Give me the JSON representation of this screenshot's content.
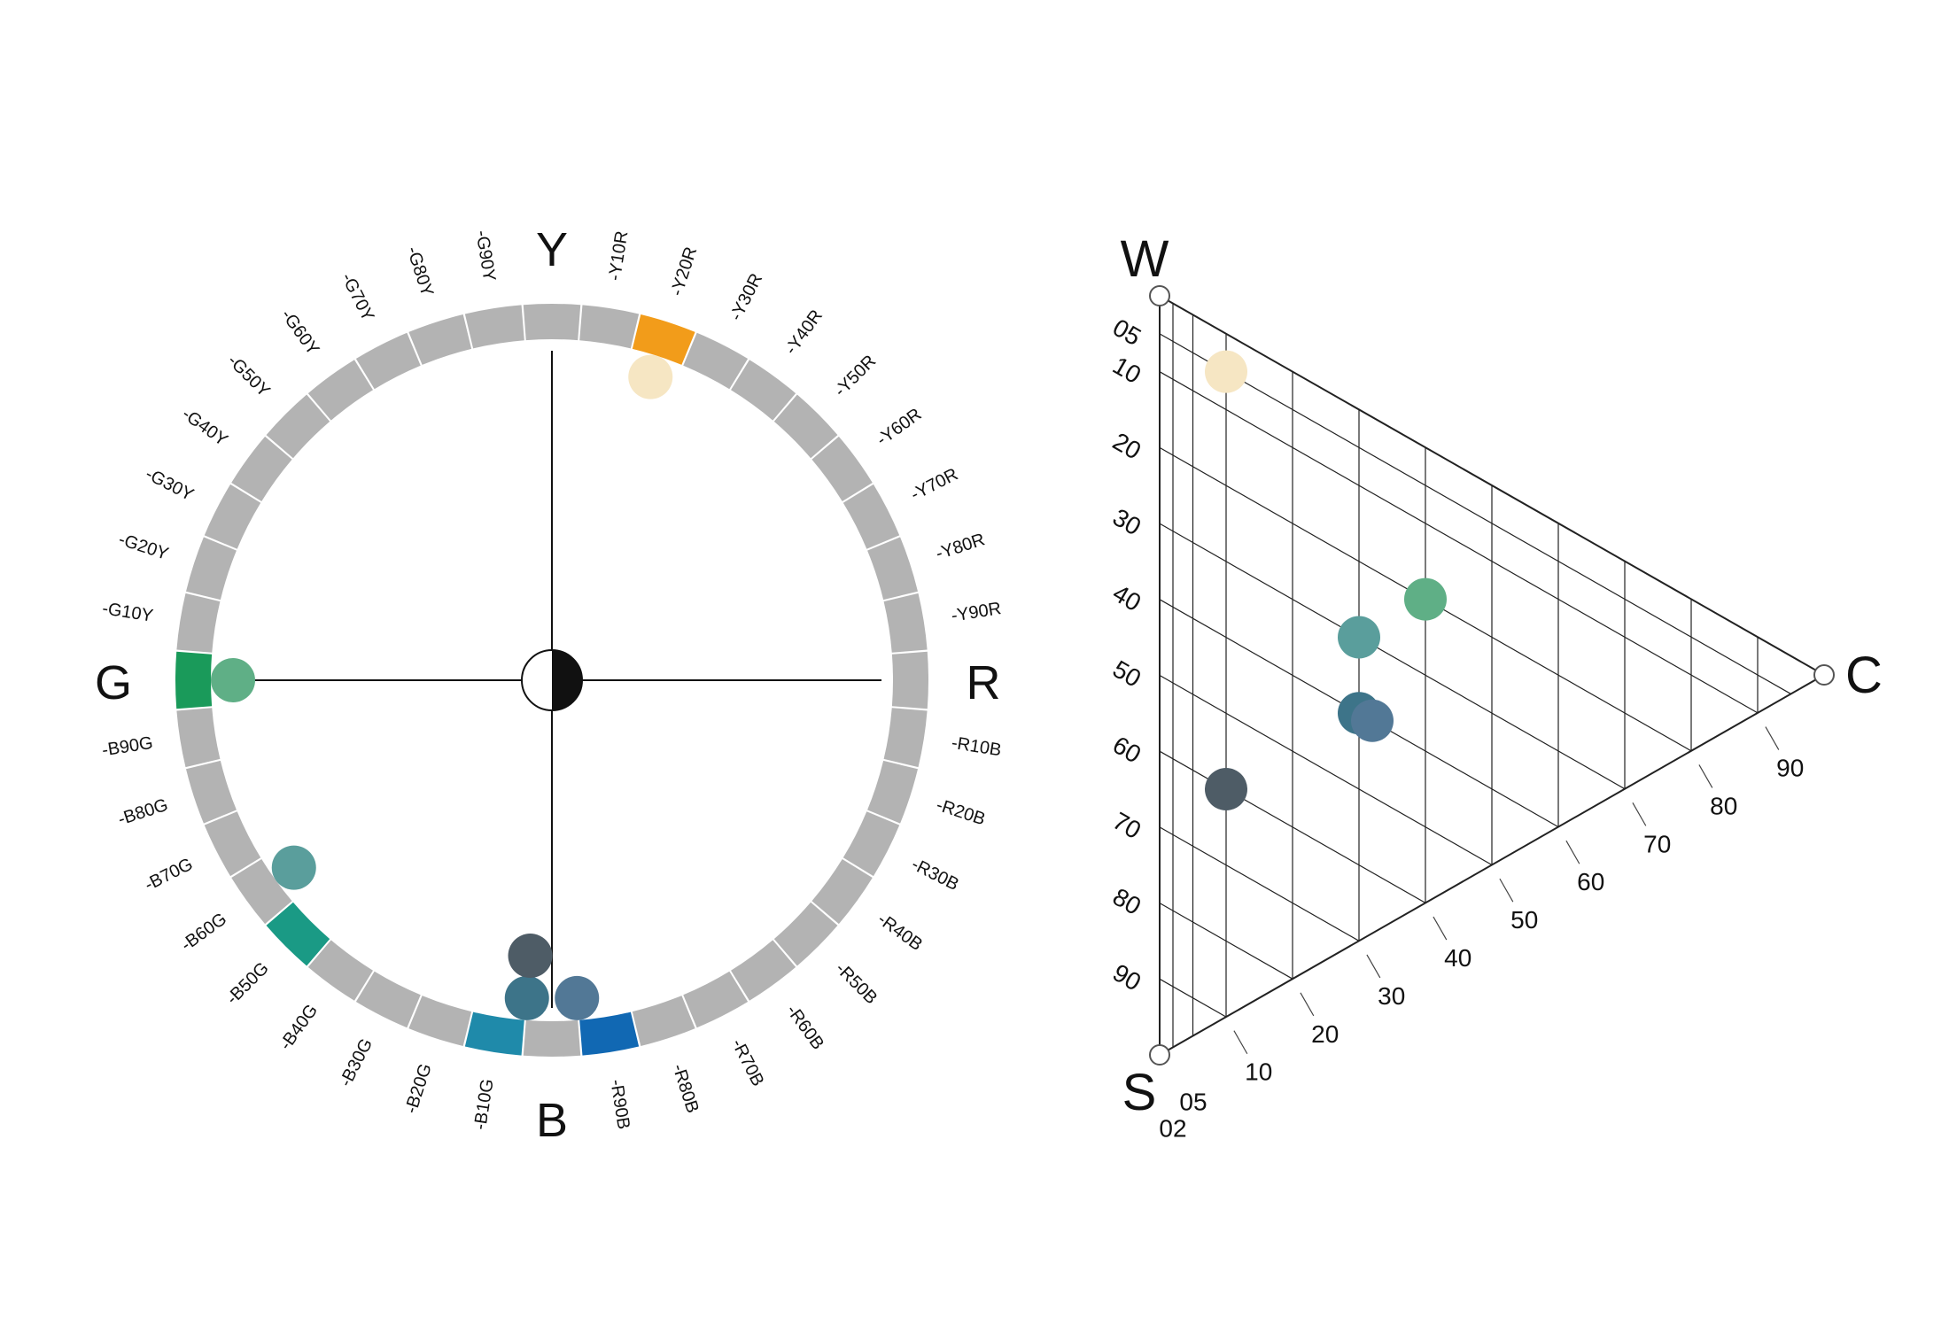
{
  "hue_circle": {
    "poles": {
      "top": "Y",
      "right": "R",
      "bottom": "B",
      "left": "G"
    },
    "hue_labels": [
      "-Y10R",
      "-Y20R",
      "-Y30R",
      "-Y40R",
      "-Y50R",
      "-Y60R",
      "-Y70R",
      "-Y80R",
      "-Y90R",
      "-R10B",
      "-R20B",
      "-R30B",
      "-R40B",
      "-R50B",
      "-R60B",
      "-R70B",
      "-R80B",
      "-R90B",
      "-B10G",
      "-B20G",
      "-B30G",
      "-B40G",
      "-B50G",
      "-B60G",
      "-B70G",
      "-B80G",
      "-B90G",
      "-G10Y",
      "-G20Y",
      "-G30Y",
      "-G40Y",
      "-G50Y",
      "-G60Y",
      "-G70Y",
      "-G80Y",
      "-G90Y"
    ],
    "segment_default_color": "#b3b3b3",
    "highlighted_segments": [
      {
        "hue": "Y20R",
        "color": "#f29c1a"
      },
      {
        "hue": "R90B",
        "color": "#1168b3"
      },
      {
        "hue": "B10G",
        "color": "#1f8aaa"
      },
      {
        "hue": "B50G",
        "color": "#1a9a85"
      },
      {
        "hue": "G",
        "color": "#1a9a5a"
      }
    ],
    "color_dots": [
      {
        "near_hue": "Y20R",
        "color": "#f6e6c3"
      },
      {
        "near_hue": "G",
        "color": "#5faf86"
      },
      {
        "near_hue": "B60G",
        "color": "#5a9e9c"
      },
      {
        "near_hue": "B05G",
        "color": "#3d7489"
      },
      {
        "near_hue": "B05G",
        "color": "#4e5c66"
      },
      {
        "near_hue": "R95B",
        "color": "#527896"
      }
    ]
  },
  "nuance_triangle": {
    "corners": {
      "white": "W",
      "black": "S",
      "chromatic": "C"
    },
    "blackness_ticks": [
      "05",
      "10",
      "20",
      "30",
      "40",
      "50",
      "60",
      "70",
      "80",
      "90"
    ],
    "chromaticness_ticks": [
      "02",
      "05",
      "10",
      "20",
      "30",
      "40",
      "50",
      "60",
      "70",
      "80",
      "90"
    ],
    "points": [
      {
        "blackness": 5,
        "chromaticness": 10,
        "color": "#f6e6c3"
      },
      {
        "blackness": 20,
        "chromaticness": 40,
        "color": "#5faf86"
      },
      {
        "blackness": 30,
        "chromaticness": 30,
        "color": "#5a9e9c"
      },
      {
        "blackness": 40,
        "chromaticness": 30,
        "color": "#3d7489"
      },
      {
        "blackness": 40,
        "chromaticness": 32,
        "color": "#527896"
      },
      {
        "blackness": 60,
        "chromaticness": 10,
        "color": "#4e5c66"
      }
    ]
  }
}
